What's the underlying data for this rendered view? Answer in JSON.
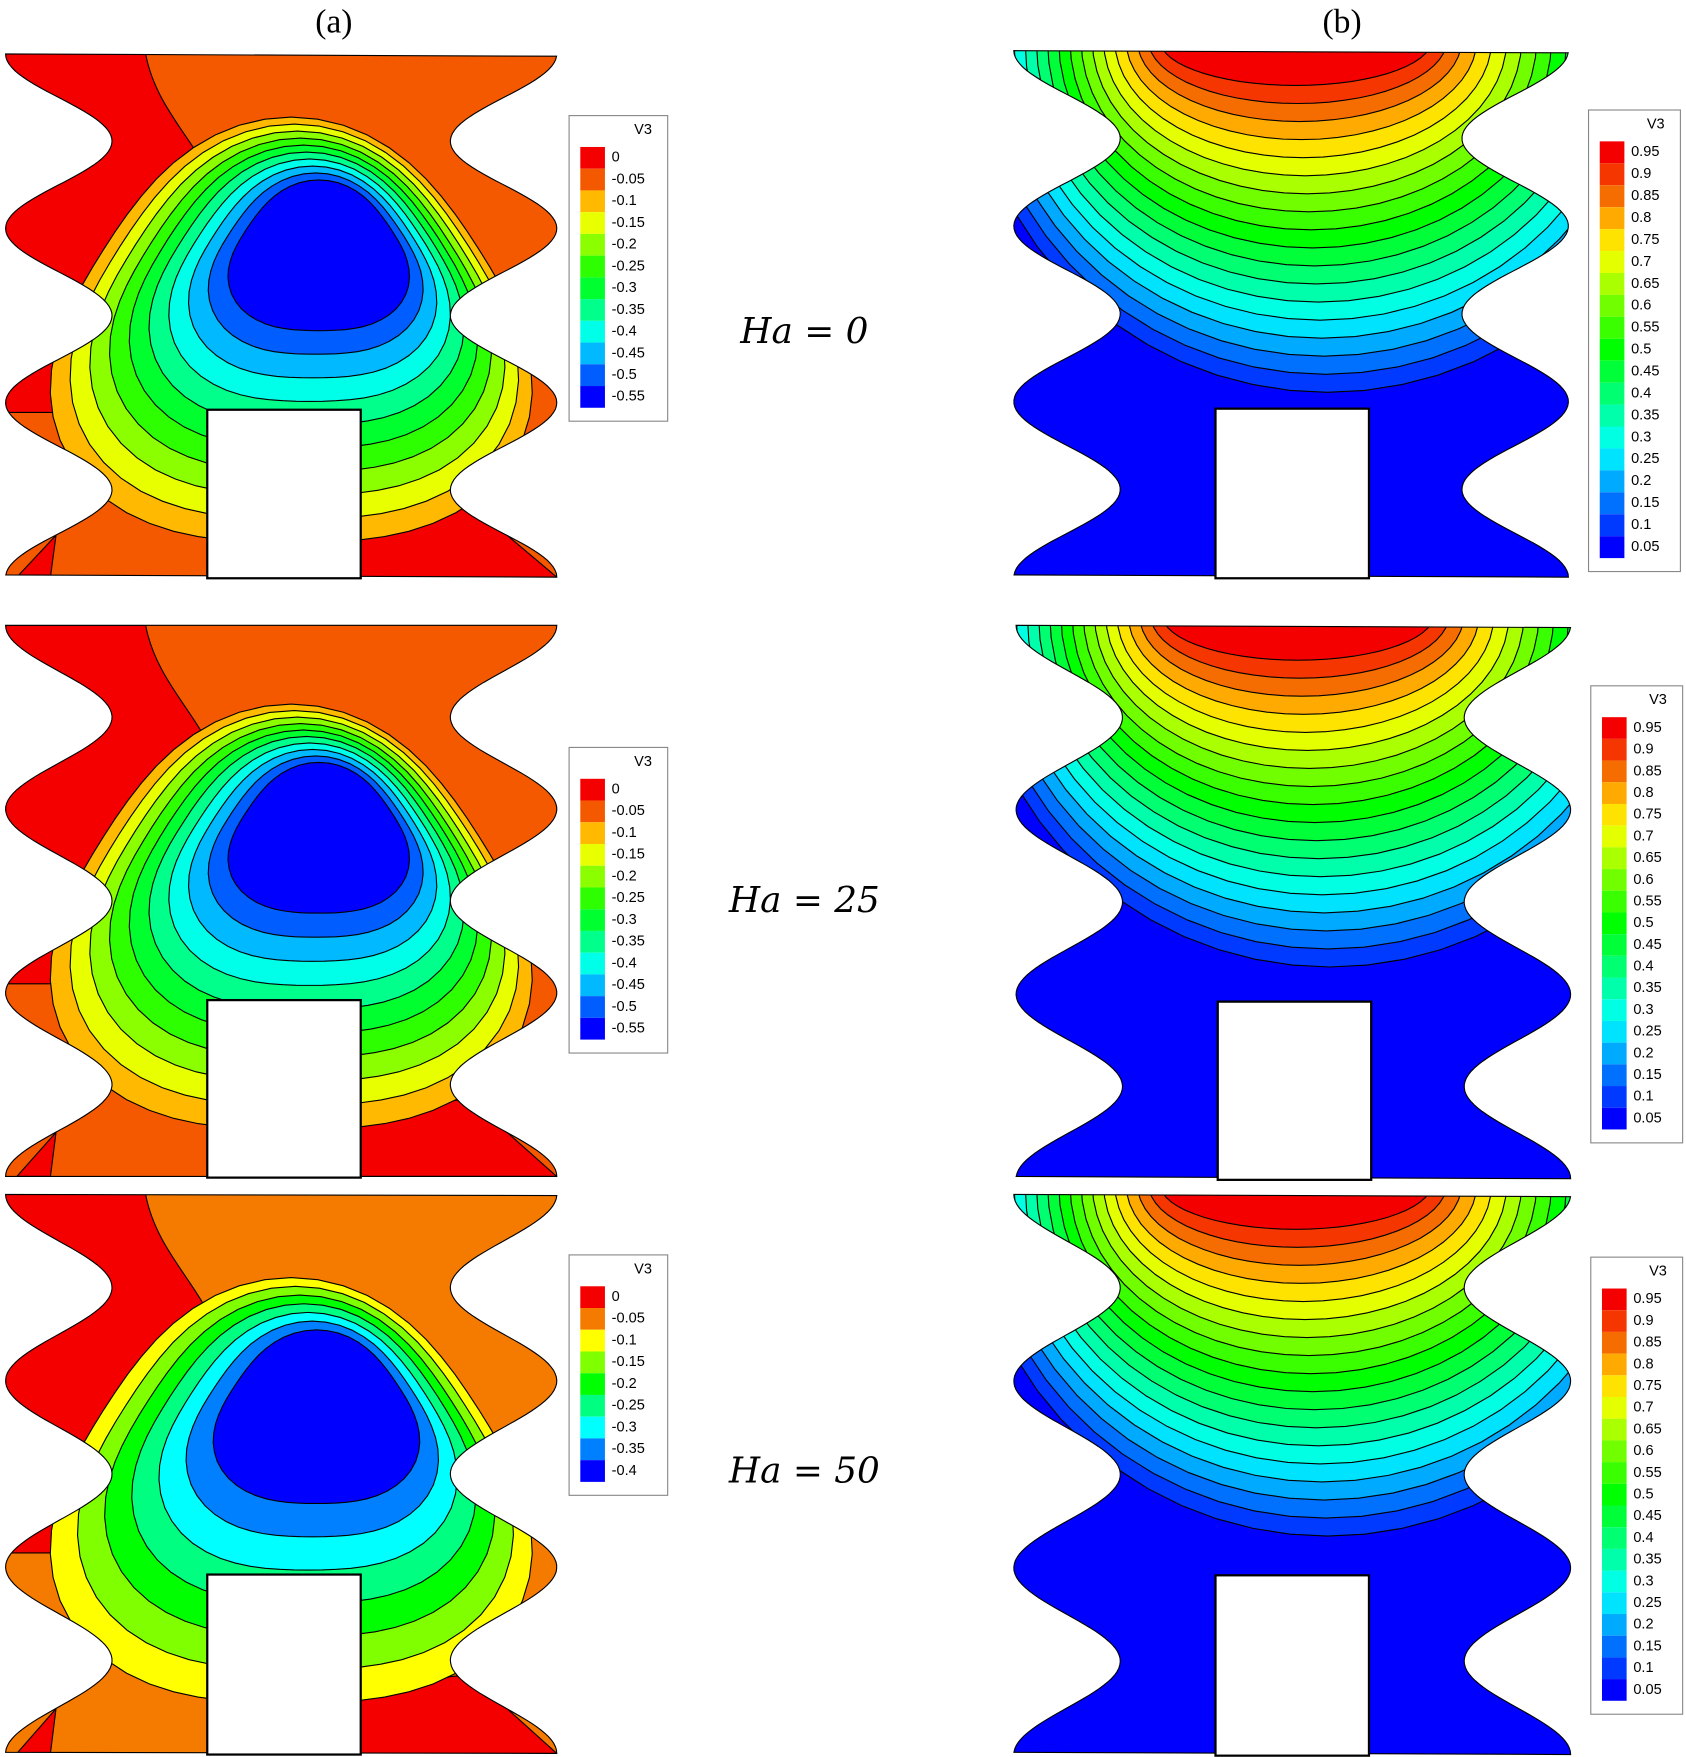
{
  "panel_labels": [
    "(a)",
    "(b)"
  ],
  "rows": [
    {
      "label": "Ha = 0",
      "legend_a": {
        "title": "V3",
        "levels": [
          "0",
          "-0.05",
          "-0.1",
          "-0.15",
          "-0.2",
          "-0.25",
          "-0.3",
          "-0.35",
          "-0.4",
          "-0.45",
          "-0.5",
          "-0.55"
        ]
      },
      "legend_b": {
        "title": "V3",
        "levels": [
          "0.95",
          "0.9",
          "0.85",
          "0.8",
          "0.75",
          "0.7",
          "0.65",
          "0.6",
          "0.55",
          "0.5",
          "0.45",
          "0.4",
          "0.35",
          "0.3",
          "0.25",
          "0.2",
          "0.15",
          "0.1",
          "0.05"
        ]
      }
    },
    {
      "label": "Ha = 25",
      "legend_a": {
        "title": "V3",
        "levels": [
          "0",
          "-0.05",
          "-0.1",
          "-0.15",
          "-0.2",
          "-0.25",
          "-0.3",
          "-0.35",
          "-0.4",
          "-0.45",
          "-0.5",
          "-0.55"
        ]
      },
      "legend_b": {
        "title": "V3",
        "levels": [
          "0.95",
          "0.9",
          "0.85",
          "0.8",
          "0.75",
          "0.7",
          "0.65",
          "0.6",
          "0.55",
          "0.5",
          "0.45",
          "0.4",
          "0.35",
          "0.3",
          "0.25",
          "0.2",
          "0.15",
          "0.1",
          "0.05"
        ]
      }
    },
    {
      "label": "Ha = 50",
      "legend_a": {
        "title": "V3",
        "levels": [
          "0",
          "-0.05",
          "-0.1",
          "-0.15",
          "-0.2",
          "-0.25",
          "-0.3",
          "-0.35",
          "-0.4"
        ]
      },
      "legend_b": {
        "title": "V3",
        "levels": [
          "0.95",
          "0.9",
          "0.85",
          "0.8",
          "0.75",
          "0.7",
          "0.65",
          "0.6",
          "0.55",
          "0.5",
          "0.45",
          "0.4",
          "0.35",
          "0.3",
          "0.25",
          "0.2",
          "0.15",
          "0.1",
          "0.05"
        ]
      }
    }
  ]
}
